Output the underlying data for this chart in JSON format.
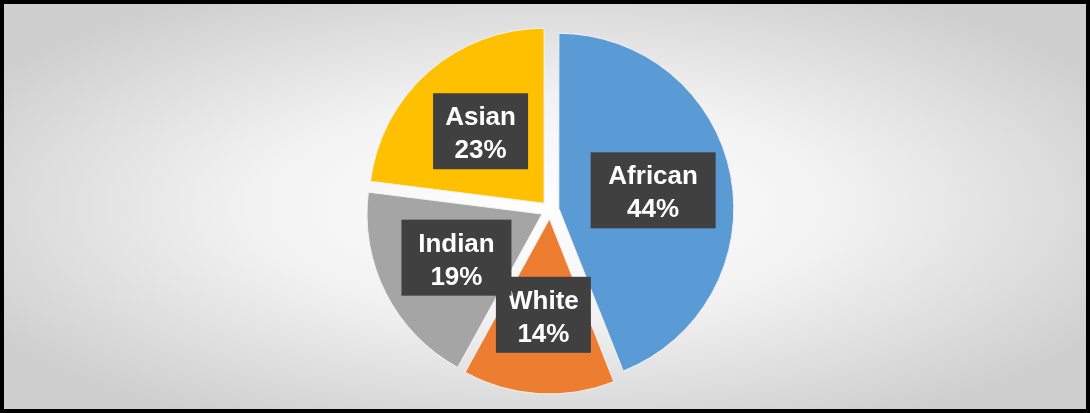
{
  "chart_data": {
    "type": "pie",
    "categories": [
      "African",
      "White",
      "Indian",
      "Asian"
    ],
    "values": [
      44,
      14,
      19,
      23
    ],
    "colors": [
      "#5b9bd5",
      "#ed7d31",
      "#a5a5a5",
      "#ffc000"
    ],
    "value_labels": [
      "44%",
      "14%",
      "19%",
      "23%"
    ]
  }
}
